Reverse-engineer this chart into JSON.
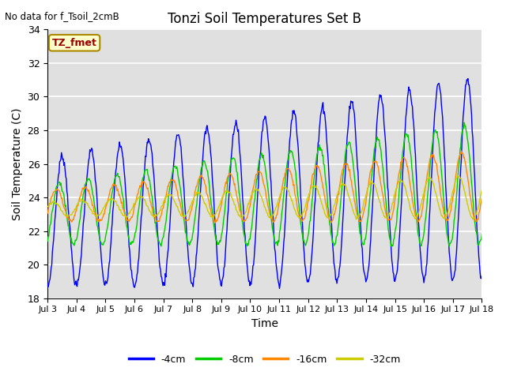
{
  "title": "Tonzi Soil Temperatures Set B",
  "xlabel": "Time",
  "ylabel": "Soil Temperature (C)",
  "no_data_text": "No data for f_Tsoil_2cmB",
  "legend_label": "TZ_fmet",
  "ylim": [
    18,
    34
  ],
  "yticks": [
    18,
    20,
    22,
    24,
    26,
    28,
    30,
    32,
    34
  ],
  "xtick_labels": [
    "Jul 3",
    "Jul 4",
    "Jul 5",
    "Jul 6",
    "Jul 7",
    "Jul 8",
    "Jul 9",
    "Jul 10",
    "Jul 11",
    "Jul 12",
    "Jul 13",
    "Jul 14",
    "Jul 15",
    "Jul 16",
    "Jul 17",
    "Jul 18"
  ],
  "colors": {
    "4cm": "#0000ff",
    "8cm": "#00cc00",
    "16cm": "#ff8800",
    "32cm": "#cccc00"
  },
  "background_color": "#e0e0e0",
  "fig_background": "#ffffff",
  "grid_color": "#ffffff"
}
